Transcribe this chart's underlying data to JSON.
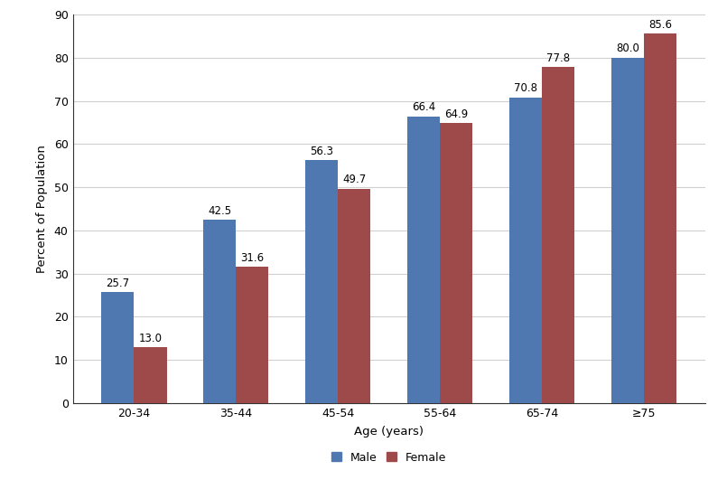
{
  "categories": [
    "20-34",
    "35-44",
    "45-54",
    "55-64",
    "65-74",
    "≥75"
  ],
  "male_values": [
    25.7,
    42.5,
    56.3,
    66.4,
    70.8,
    80.0
  ],
  "female_values": [
    13.0,
    31.6,
    49.7,
    64.9,
    77.8,
    85.6
  ],
  "male_color": "#4f78b0",
  "female_color": "#9e4a4a",
  "xlabel": "Age (years)",
  "ylabel": "Percent of Population",
  "ylim": [
    0,
    90
  ],
  "yticks": [
    0,
    10,
    20,
    30,
    40,
    50,
    60,
    70,
    80,
    90
  ],
  "legend_labels": [
    "Male",
    "Female"
  ],
  "bar_width": 0.32,
  "label_fontsize": 8.5,
  "axis_fontsize": 9.5,
  "tick_fontsize": 9,
  "legend_fontsize": 9,
  "background_color": "#ffffff",
  "grid_color": "#d0d0d0",
  "spine_color": "#333333"
}
